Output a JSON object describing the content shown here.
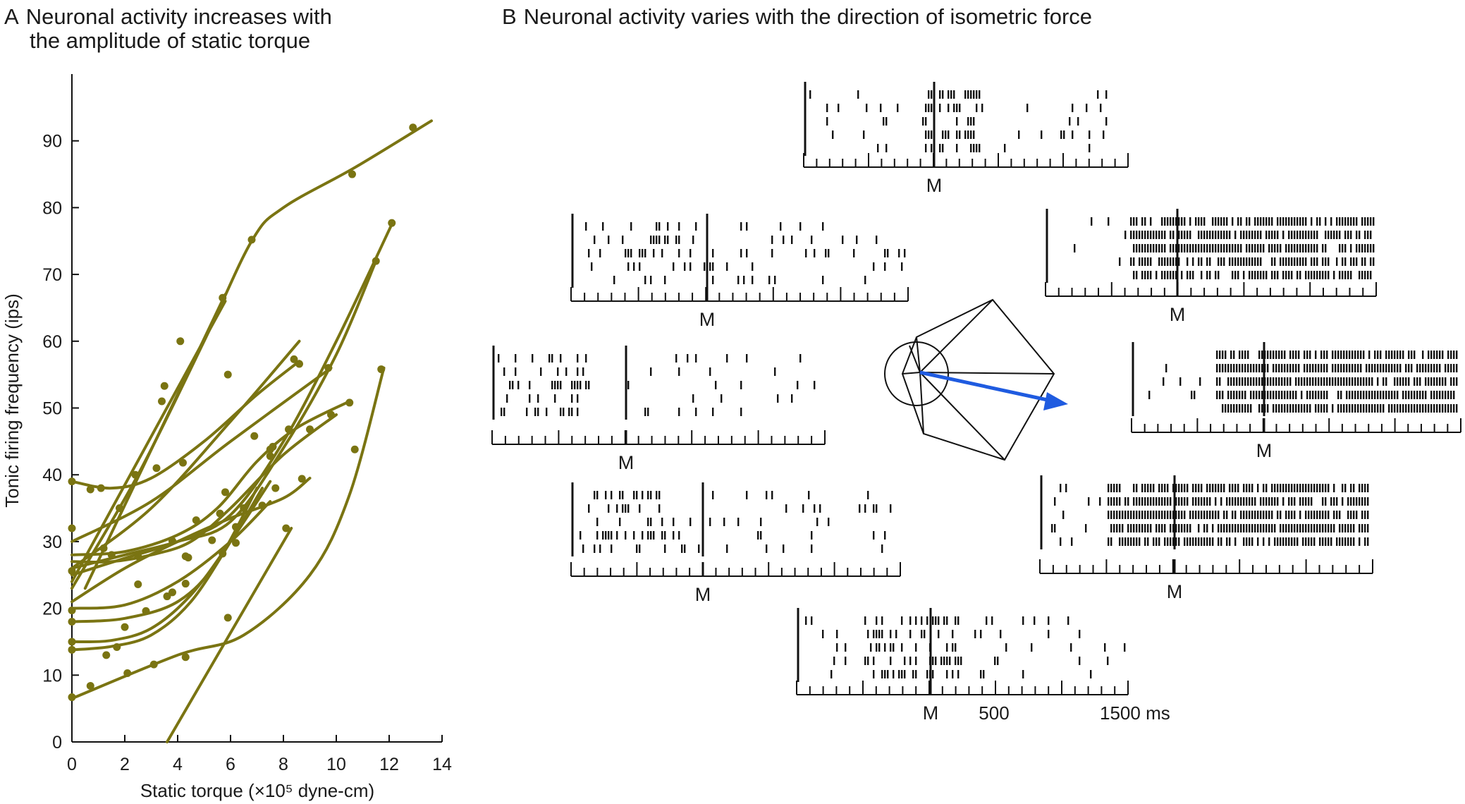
{
  "panel_a": {
    "letter": "A",
    "title_line1": "Neuronal activity increases with",
    "title_line2": "the amplitude of static torque"
  },
  "panel_b": {
    "letter": "B",
    "title": "Neuronal activity varies with the direction of isometric force",
    "marker_label": "M",
    "scale_labels": [
      "500",
      "1500 ms"
    ]
  },
  "colors": {
    "curve": "#7a7412",
    "arrow": "#1f5be0",
    "ink": "#111111"
  },
  "chart_data": [
    {
      "type": "line",
      "xlabel": "Static torque (×10⁵ dyne-cm)",
      "ylabel": "Tonic firing frequency (ips)",
      "xlim": [
        0,
        14
      ],
      "ylim": [
        0,
        100
      ],
      "x_ticks": [
        0,
        2,
        4,
        6,
        8,
        10,
        12,
        14
      ],
      "y_ticks": [
        0,
        10,
        20,
        30,
        40,
        50,
        60,
        70,
        80,
        90
      ],
      "grid": false,
      "series": [
        {
          "x": [
            0,
            2.5,
            5,
            6.8,
            8,
            10.7,
            13.6
          ],
          "y": [
            23,
            40,
            60,
            75,
            80,
            86,
            93
          ],
          "points": [
            [
              6.8,
              75.2
            ],
            [
              10.6,
              85
            ],
            [
              12.9,
              92
            ]
          ]
        },
        {
          "x": [
            0.5,
            5.8
          ],
          "y": [
            23,
            67
          ],
          "points": [
            [
              4.1,
              60
            ],
            [
              5.7,
              66.5
            ]
          ]
        },
        {
          "x": [
            0,
            5.8
          ],
          "y": [
            24,
            66
          ],
          "points": [
            [
              3.4,
              51
            ],
            [
              3.5,
              53.3
            ]
          ]
        },
        {
          "x": [
            3.6,
            8.3
          ],
          "y": [
            0,
            32
          ],
          "points": [
            [
              5.9,
              18.6
            ],
            [
              8.1,
              32
            ]
          ]
        },
        {
          "x": [
            0,
            2,
            4,
            6,
            8,
            10,
            12.1
          ],
          "y": [
            25,
            27.5,
            30,
            34,
            45,
            60,
            77.5
          ],
          "points": [
            [
              1.2,
              29
            ],
            [
              2.5,
              27.8
            ],
            [
              6.9,
              45.8
            ],
            [
              12.1,
              77.7
            ]
          ]
        },
        {
          "x": [
            0,
            2,
            4,
            6,
            8,
            10,
            11.5
          ],
          "y": [
            26,
            28,
            30,
            33,
            44,
            58,
            72
          ],
          "points": [
            [
              3.8,
              30.1
            ],
            [
              7.6,
              44.2
            ],
            [
              11.5,
              72
            ]
          ]
        },
        {
          "x": [
            0,
            3,
            6,
            8.6
          ],
          "y": [
            26,
            35,
            48,
            60
          ],
          "points": [
            [
              0,
              25.6
            ],
            [
              1.8,
              35
            ]
          ]
        },
        {
          "x": [
            0,
            3,
            6,
            9.8
          ],
          "y": [
            30,
            36,
            45,
            56
          ],
          "points": [
            [
              0,
              32
            ],
            [
              3.2,
              41
            ],
            [
              5.9,
              55
            ],
            [
              9.7,
              56
            ]
          ]
        },
        {
          "x": [
            0,
            1.5,
            3,
            5,
            7,
            8.6
          ],
          "y": [
            39,
            38,
            39.5,
            45,
            52,
            57
          ],
          "points": [
            [
              0,
              39
            ],
            [
              0.7,
              37.8
            ],
            [
              1.1,
              38
            ],
            [
              2.4,
              40
            ],
            [
              4.2,
              41.8
            ],
            [
              8.4,
              57.3
            ],
            [
              8.6,
              56.6
            ]
          ]
        },
        {
          "x": [
            0,
            2,
            4,
            5.5,
            7,
            8.5,
            10.5
          ],
          "y": [
            28,
            28.5,
            31,
            35,
            42,
            47,
            51
          ],
          "points": [
            [
              1.5,
              28
            ],
            [
              4.7,
              33.2
            ],
            [
              6.5,
              35
            ],
            [
              7.5,
              42.8
            ],
            [
              8.2,
              46.8
            ],
            [
              10.5,
              50.8
            ]
          ]
        },
        {
          "x": [
            0,
            1.5,
            3,
            4.5,
            6,
            8,
            10
          ],
          "y": [
            27,
            27,
            28,
            30,
            35,
            43,
            49
          ],
          "points": [
            [
              5.6,
              34.2
            ],
            [
              7.5,
              43.8
            ],
            [
              9.0,
              46.8
            ],
            [
              9.8,
              49
            ]
          ]
        },
        {
          "x": [
            0,
            2,
            4,
            6,
            8,
            9
          ],
          "y": [
            21,
            26,
            30,
            33.5,
            36.5,
            39.5
          ],
          "points": [
            [
              4.4,
              27.6
            ],
            [
              5.3,
              30.2
            ],
            [
              7.2,
              35.4
            ],
            [
              8.7,
              39.4
            ]
          ]
        },
        {
          "x": [
            0,
            2,
            4,
            6,
            7.5
          ],
          "y": [
            20,
            20.5,
            24,
            30,
            36
          ],
          "points": [
            [
              0,
              19.7
            ],
            [
              2.5,
              23.6
            ],
            [
              4.3,
              27.8
            ],
            [
              6.2,
              32.2
            ]
          ]
        },
        {
          "x": [
            0,
            2,
            4,
            5.5,
            7
          ],
          "y": [
            18,
            18.5,
            21,
            27,
            38
          ],
          "points": [
            [
              0,
              18
            ],
            [
              2,
              17.2
            ],
            [
              3.6,
              21.8
            ],
            [
              5.7,
              28.2
            ],
            [
              7.7,
              38
            ]
          ]
        },
        {
          "x": [
            0,
            1.5,
            3,
            4.5,
            6,
            7.5
          ],
          "y": [
            15,
            15.2,
            17,
            22,
            30,
            39
          ],
          "points": [
            [
              0,
              15
            ],
            [
              1.3,
              13
            ],
            [
              2.8,
              19.6
            ],
            [
              4.3,
              23.7
            ],
            [
              5.8,
              37.4
            ]
          ]
        },
        {
          "x": [
            0,
            1.5,
            3,
            4.5,
            6,
            7.2
          ],
          "y": [
            13.8,
            14.3,
            16,
            21,
            30,
            38
          ],
          "points": [
            [
              0,
              13.8
            ],
            [
              1.7,
              14.2
            ],
            [
              3.8,
              22.4
            ],
            [
              6.2,
              29.8
            ]
          ]
        },
        {
          "x": [
            0,
            4,
            6.5,
            9,
            10.5,
            11.8
          ],
          "y": [
            6.5,
            13,
            16,
            25,
            37,
            56
          ],
          "points": [
            [
              0,
              6.7
            ],
            [
              0.7,
              8.4
            ],
            [
              2.1,
              10.3
            ],
            [
              3.1,
              11.6
            ],
            [
              4.3,
              12.7
            ],
            [
              10.7,
              43.8
            ],
            [
              11.7,
              55.8
            ]
          ]
        }
      ]
    },
    {
      "type": "raster",
      "description_markers": "M",
      "time_scale_ticks": [
        "M",
        "500",
        "1500 ms"
      ],
      "raster_plots": [
        {
          "position": "top",
          "trials": 5
        },
        {
          "position": "upper-left",
          "trials": 5
        },
        {
          "position": "upper-right",
          "trials": 5
        },
        {
          "position": "left",
          "trials": 5
        },
        {
          "position": "right",
          "trials": 5
        },
        {
          "position": "lower-left",
          "trials": 5
        },
        {
          "position": "lower-right",
          "trials": 5
        },
        {
          "position": "bottom",
          "trials": 5
        }
      ],
      "preferred_direction": "right"
    }
  ]
}
